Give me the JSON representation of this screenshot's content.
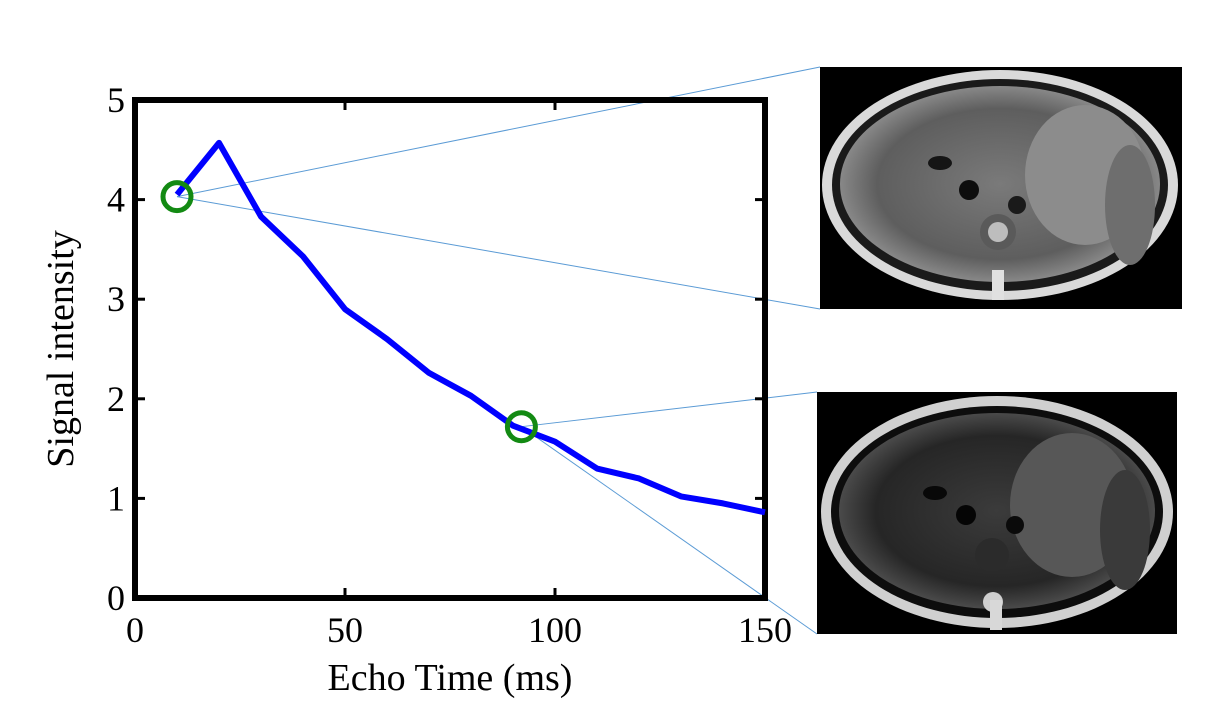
{
  "chart_data": {
    "type": "line",
    "xlabel": "Echo Time (ms)",
    "ylabel": "Signal intensity",
    "xlim": [
      0,
      150
    ],
    "ylim": [
      0,
      5
    ],
    "xticks": [
      0,
      50,
      100,
      150
    ],
    "yticks": [
      0,
      1,
      2,
      3,
      4,
      5
    ],
    "grid": false,
    "series": [
      {
        "color": "#0000ff",
        "x": [
          10,
          20,
          30,
          40,
          50,
          60,
          70,
          80,
          90,
          100,
          110,
          120,
          130,
          140,
          150
        ],
        "y": [
          4.05,
          4.57,
          3.83,
          3.43,
          2.9,
          2.6,
          2.26,
          2.03,
          1.73,
          1.57,
          1.3,
          1.2,
          1.02,
          0.95,
          0.86
        ]
      }
    ],
    "highlighted_points": [
      {
        "x": 10,
        "y": 4.03,
        "color": "#138a13"
      },
      {
        "x": 92,
        "y": 1.72,
        "color": "#138a13"
      }
    ],
    "insets": [
      {
        "name": "mri-image-early-echo",
        "linked_point": 0
      },
      {
        "name": "mri-image-late-echo",
        "linked_point": 1
      }
    ],
    "connector_color": "#5b9bd5"
  }
}
